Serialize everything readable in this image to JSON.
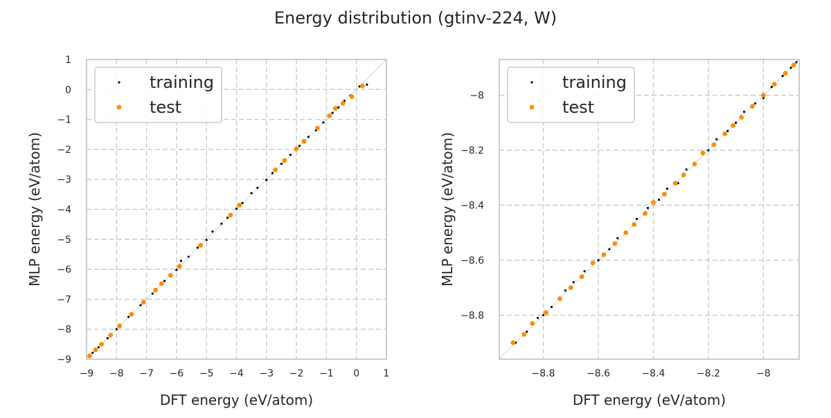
{
  "title": "Energy distribution (gtinv-224, W)",
  "colors": {
    "training": "#000000",
    "test": "#ff8c00"
  },
  "chart_data": [
    {
      "type": "scatter",
      "xlabel": "DFT energy (eV/atom)",
      "ylabel": "MLP energy (eV/atom)",
      "xlim": [
        -9,
        1
      ],
      "ylim": [
        -9,
        1
      ],
      "xticks": [
        -9,
        -8,
        -7,
        -6,
        -5,
        -4,
        -3,
        -2,
        -1,
        0,
        1
      ],
      "yticks": [
        -9,
        -8,
        -7,
        -6,
        -5,
        -4,
        -3,
        -2,
        -1,
        0,
        1
      ],
      "grid": true,
      "legend": "top-left",
      "reference_line": "y=x",
      "series": [
        {
          "name": "training",
          "points": [
            [
              -8.92,
              -8.91
            ],
            [
              -8.8,
              -8.79
            ],
            [
              -8.6,
              -8.6
            ],
            [
              -8.3,
              -8.3
            ],
            [
              -8.0,
              -8.0
            ],
            [
              -7.6,
              -7.59
            ],
            [
              -7.2,
              -7.2
            ],
            [
              -6.8,
              -6.81
            ],
            [
              -6.4,
              -6.39
            ],
            [
              -6.0,
              -6.02
            ],
            [
              -5.85,
              -5.72
            ],
            [
              -5.6,
              -5.58
            ],
            [
              -5.3,
              -5.28
            ],
            [
              -5.0,
              -5.02
            ],
            [
              -4.8,
              -4.74
            ],
            [
              -4.5,
              -4.48
            ],
            [
              -4.3,
              -4.28
            ],
            [
              -4.0,
              -3.98
            ],
            [
              -3.8,
              -3.79
            ],
            [
              -3.5,
              -3.46
            ],
            [
              -3.3,
              -3.28
            ],
            [
              -3.0,
              -3.02
            ],
            [
              -2.8,
              -2.79
            ],
            [
              -2.5,
              -2.48
            ],
            [
              -2.2,
              -2.18
            ],
            [
              -1.9,
              -1.88
            ],
            [
              -1.6,
              -1.58
            ],
            [
              -1.35,
              -1.36
            ],
            [
              -1.1,
              -1.1
            ],
            [
              -0.8,
              -0.78
            ],
            [
              -0.6,
              -0.6
            ],
            [
              -0.4,
              -0.38
            ],
            [
              -0.2,
              -0.2
            ],
            [
              0.1,
              0.1
            ],
            [
              0.35,
              0.16
            ]
          ]
        },
        {
          "name": "test",
          "points": [
            [
              -8.9,
              -8.89
            ],
            [
              -8.7,
              -8.69
            ],
            [
              -8.5,
              -8.5
            ],
            [
              -8.2,
              -8.2
            ],
            [
              -7.9,
              -7.89
            ],
            [
              -7.5,
              -7.5
            ],
            [
              -7.1,
              -7.1
            ],
            [
              -6.7,
              -6.69
            ],
            [
              -6.5,
              -6.48
            ],
            [
              -6.2,
              -6.2
            ],
            [
              -5.9,
              -5.9
            ],
            [
              -5.2,
              -5.2
            ],
            [
              -4.2,
              -4.19
            ],
            [
              -3.9,
              -3.86
            ],
            [
              -2.7,
              -2.68
            ],
            [
              -2.4,
              -2.37
            ],
            [
              -2.0,
              -1.98
            ],
            [
              -1.75,
              -1.73
            ],
            [
              -1.3,
              -1.29
            ],
            [
              -0.9,
              -0.88
            ],
            [
              -0.7,
              -0.63
            ],
            [
              -0.45,
              -0.46
            ],
            [
              -0.15,
              -0.24
            ],
            [
              0.2,
              0.12
            ]
          ]
        }
      ]
    },
    {
      "type": "scatter",
      "xlabel": "DFT energy (eV/atom)",
      "ylabel": "MLP energy (eV/atom)",
      "xlim": [
        -8.96,
        -7.87
      ],
      "ylim": [
        -8.96,
        -7.87
      ],
      "xticks": [
        -8.8,
        -8.6,
        -8.4,
        -8.2,
        -8.0
      ],
      "yticks": [
        -8.8,
        -8.6,
        -8.4,
        -8.2,
        -8.0
      ],
      "grid": true,
      "legend": "top-left",
      "reference_line": "y=x",
      "series": [
        {
          "name": "training",
          "points": [
            [
              -8.9,
              -8.9
            ],
            [
              -8.86,
              -8.86
            ],
            [
              -8.82,
              -8.81
            ],
            [
              -8.8,
              -8.8
            ],
            [
              -8.77,
              -8.77
            ],
            [
              -8.72,
              -8.71
            ],
            [
              -8.69,
              -8.68
            ],
            [
              -8.65,
              -8.64
            ],
            [
              -8.6,
              -8.6
            ],
            [
              -8.56,
              -8.56
            ],
            [
              -8.53,
              -8.52
            ],
            [
              -8.5,
              -8.5
            ],
            [
              -8.46,
              -8.45
            ],
            [
              -8.42,
              -8.41
            ],
            [
              -8.38,
              -8.38
            ],
            [
              -8.35,
              -8.34
            ],
            [
              -8.31,
              -8.32
            ],
            [
              -8.28,
              -8.27
            ],
            [
              -8.25,
              -8.25
            ],
            [
              -8.2,
              -8.2
            ],
            [
              -8.17,
              -8.16
            ],
            [
              -8.13,
              -8.13
            ],
            [
              -8.1,
              -8.1
            ],
            [
              -8.07,
              -8.06
            ],
            [
              -8.03,
              -8.03
            ],
            [
              -8.0,
              -8.01
            ],
            [
              -7.97,
              -7.97
            ],
            [
              -7.93,
              -7.93
            ],
            [
              -7.9,
              -7.9
            ],
            [
              -7.88,
              -7.88
            ]
          ]
        },
        {
          "name": "test",
          "points": [
            [
              -8.91,
              -8.9
            ],
            [
              -8.87,
              -8.87
            ],
            [
              -8.84,
              -8.83
            ],
            [
              -8.79,
              -8.79
            ],
            [
              -8.74,
              -8.74
            ],
            [
              -8.7,
              -8.7
            ],
            [
              -8.66,
              -8.66
            ],
            [
              -8.62,
              -8.61
            ],
            [
              -8.58,
              -8.58
            ],
            [
              -8.54,
              -8.54
            ],
            [
              -8.5,
              -8.5
            ],
            [
              -8.47,
              -8.47
            ],
            [
              -8.43,
              -8.43
            ],
            [
              -8.4,
              -8.39
            ],
            [
              -8.36,
              -8.36
            ],
            [
              -8.32,
              -8.32
            ],
            [
              -8.29,
              -8.29
            ],
            [
              -8.25,
              -8.25
            ],
            [
              -8.22,
              -8.21
            ],
            [
              -8.18,
              -8.18
            ],
            [
              -8.14,
              -8.14
            ],
            [
              -8.11,
              -8.11
            ],
            [
              -8.08,
              -8.08
            ],
            [
              -8.04,
              -8.04
            ],
            [
              -8.0,
              -8.0
            ],
            [
              -7.96,
              -7.96
            ],
            [
              -7.92,
              -7.92
            ],
            [
              -7.89,
              -7.89
            ]
          ]
        }
      ]
    }
  ]
}
